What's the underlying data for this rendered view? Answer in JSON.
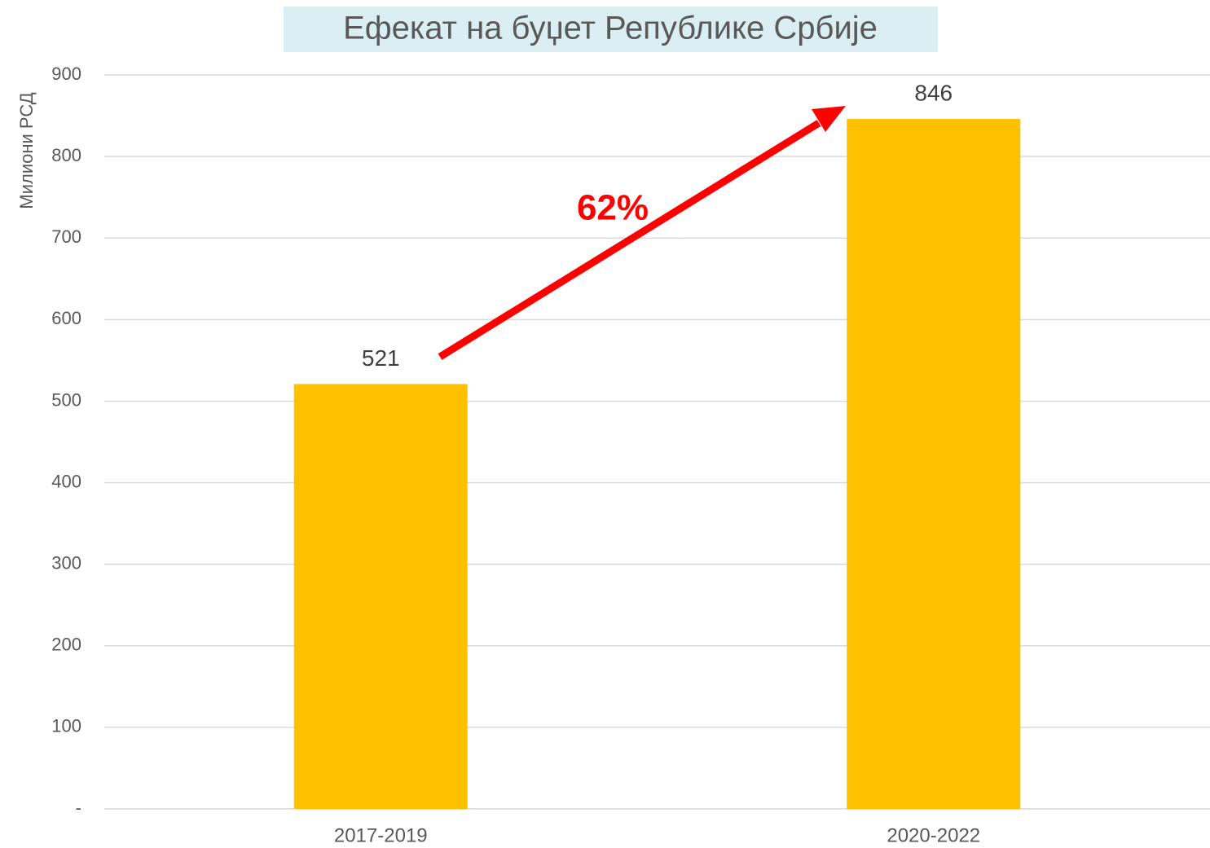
{
  "chart_data": {
    "type": "bar",
    "title": "Ефекат на буџет Републике Србије",
    "y_label": "Милиони РСД",
    "categories": [
      "2017-2019",
      "2020-2022"
    ],
    "values": [
      521,
      846
    ],
    "color": "#ffc000",
    "ylim": [
      0,
      900
    ],
    "yticks": [
      {
        "value": 0,
        "label": "-"
      },
      100,
      200,
      300,
      400,
      500,
      600,
      700,
      800,
      900
    ],
    "grid": true,
    "annotation": "62%"
  }
}
